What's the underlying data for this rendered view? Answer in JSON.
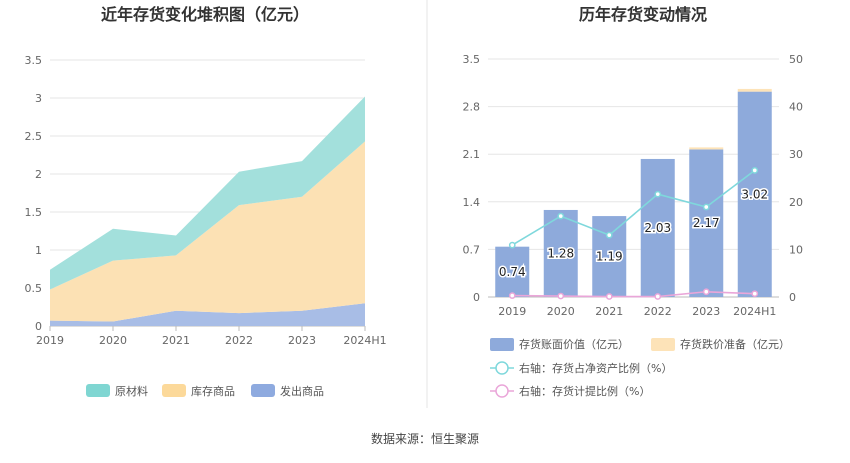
{
  "source": "数据来源：恒生聚源",
  "chart_data": [
    {
      "type": "area",
      "stacked": true,
      "title": "近年存货变化堆积图（亿元）",
      "categories": [
        "2019",
        "2020",
        "2021",
        "2022",
        "2023",
        "2024H1"
      ],
      "ylim": [
        0,
        3.5
      ],
      "yticks": [
        "0",
        "0.5",
        "1",
        "1.5",
        "2",
        "2.5",
        "3",
        "3.5"
      ],
      "series": [
        {
          "name": "发出商品",
          "color": "#a8bde6",
          "values": [
            0.07,
            0.06,
            0.2,
            0.17,
            0.2,
            0.3
          ]
        },
        {
          "name": "库存商品",
          "color": "#fce1b4",
          "values": [
            0.41,
            0.8,
            0.73,
            1.42,
            1.5,
            2.13
          ]
        },
        {
          "name": "原材料",
          "color": "#a3e0dc",
          "values": [
            0.26,
            0.42,
            0.26,
            0.44,
            0.47,
            0.59
          ]
        }
      ],
      "legend": [
        {
          "label": "原材料",
          "color": "#7fd6d2"
        },
        {
          "label": "库存商品",
          "color": "#fcd99a"
        },
        {
          "label": "发出商品",
          "color": "#8eaadf"
        }
      ],
      "legend_position": "bottom"
    },
    {
      "type": "bar+line",
      "title": "历年存货变动情况",
      "categories": [
        "2019",
        "2020",
        "2021",
        "2022",
        "2023",
        "2024H1"
      ],
      "left_axis": {
        "ylim": [
          0,
          3.5
        ],
        "ticks": [
          "0",
          "0.7",
          "1.4",
          "2.1",
          "2.8",
          "3.5"
        ]
      },
      "right_axis": {
        "ylim": [
          0,
          50
        ],
        "ticks": [
          "0",
          "10",
          "20",
          "30",
          "40",
          "50"
        ]
      },
      "bars": {
        "name": "存货账面价值（亿元）",
        "color": "#8eaadb",
        "values": [
          0.74,
          1.28,
          1.19,
          2.03,
          2.17,
          3.02
        ],
        "labels": [
          "0.74",
          "1.28",
          "1.19",
          "2.03",
          "2.17",
          "3.02"
        ]
      },
      "stack": {
        "name": "存货跌价准备（亿元）",
        "color": "#fde3b8",
        "values": [
          0,
          0,
          0,
          0,
          0.03,
          0.04
        ]
      },
      "lines": [
        {
          "name": "右轴：存货占净资产比例（%）",
          "color": "#7fd8dc",
          "values": [
            10.9,
            17.0,
            13.0,
            21.6,
            18.9,
            26.6
          ]
        },
        {
          "name": "右轴：存货计提比例（%）",
          "color": "#eaa6d9",
          "values": [
            0.3,
            0.2,
            0.1,
            0.1,
            1.1,
            0.7
          ]
        }
      ],
      "legend_position": "bottom"
    }
  ]
}
